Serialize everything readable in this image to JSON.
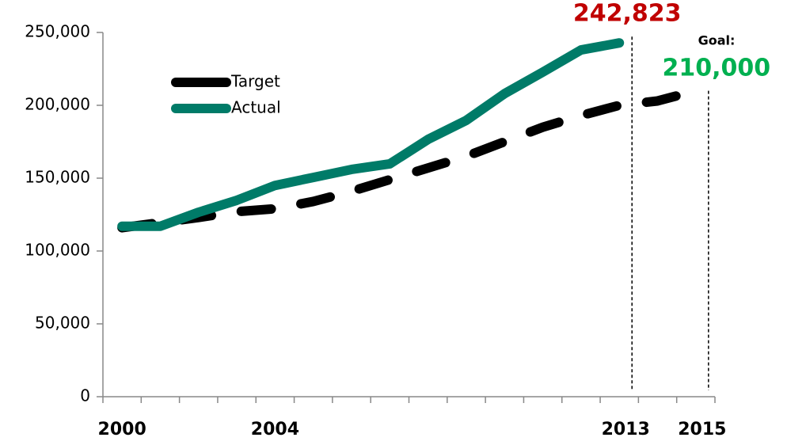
{
  "chart_data": {
    "type": "line",
    "categories": [
      "2000",
      null,
      null,
      null,
      "2004",
      null,
      null,
      null,
      null,
      null,
      null,
      null,
      null,
      "2013",
      null,
      "2015"
    ],
    "series": [
      {
        "name": "Target",
        "color": "#000000",
        "dash": true,
        "values": [
          116000,
          119500,
          123000,
          127000,
          129000,
          134000,
          141000,
          149000,
          157000,
          165000,
          175000,
          185000,
          193000,
          200000,
          203000,
          210000
        ],
        "value_labels": [
          null,
          null,
          null,
          null,
          null,
          null,
          null,
          null,
          null,
          null,
          null,
          null,
          null,
          null,
          null,
          "210,000"
        ],
        "label_color": "#00b050"
      },
      {
        "name": "Actual",
        "color": "#007b68",
        "dash": false,
        "values": [
          117000,
          117000,
          126600,
          134800,
          145000,
          150500,
          156000,
          159800,
          176600,
          189700,
          208000,
          222800,
          238000,
          242823,
          null,
          null
        ],
        "value_labels": [
          null,
          null,
          null,
          null,
          null,
          null,
          null,
          null,
          null,
          null,
          null,
          null,
          null,
          "242,823",
          null,
          null
        ],
        "label_color": "#c00000"
      }
    ],
    "annotations": [
      "Goal:"
    ],
    "ylim": [
      0,
      250000
    ],
    "yticks": [
      0,
      {
        "value": 50000,
        "label": "50,000"
      },
      {
        "value": 100000,
        "label": "100,000"
      },
      {
        "value": 150000,
        "label": "150,000"
      },
      {
        "value": 200000,
        "label": "200,000"
      },
      {
        "value": 250000,
        "label": "250,000"
      }
    ],
    "grid": false
  }
}
